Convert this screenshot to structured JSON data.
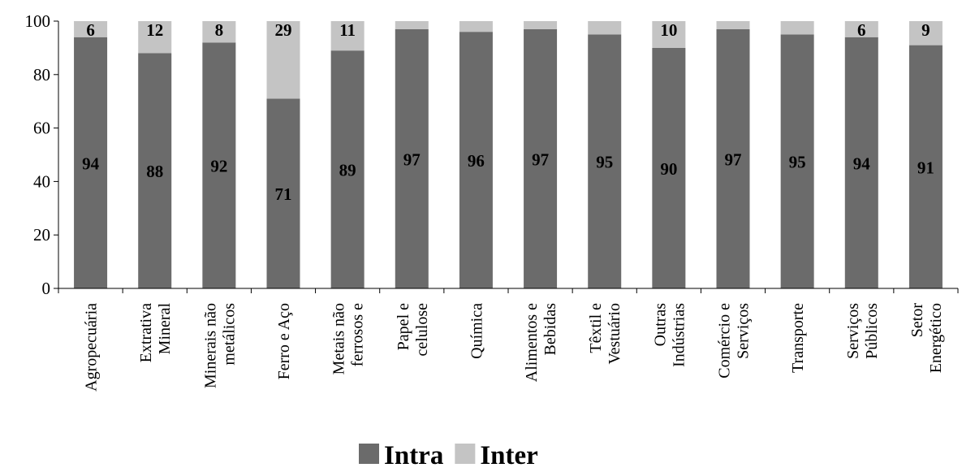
{
  "chart_data": {
    "type": "bar",
    "stacked": true,
    "categories": [
      [
        "Agropecuária"
      ],
      [
        "Extrativa",
        "Mineral"
      ],
      [
        "Minerais não",
        "metálicos"
      ],
      [
        "Ferro e Aço"
      ],
      [
        "Metais não",
        "ferrosos e"
      ],
      [
        "Papel e",
        "celulose"
      ],
      [
        "Química"
      ],
      [
        "Alimentos e",
        "Bebidas"
      ],
      [
        "Têxtil e",
        "Vestuário"
      ],
      [
        "Outras",
        "Indústrias"
      ],
      [
        "Comércio e",
        "Serviços"
      ],
      [
        "Transporte"
      ],
      [
        "Serviços",
        "Públicos"
      ],
      [
        "Setor",
        "Energético"
      ]
    ],
    "series": [
      {
        "name": "Intra",
        "color": "#6b6b6b",
        "values": [
          94,
          88,
          92,
          71,
          89,
          97,
          96,
          97,
          95,
          90,
          97,
          95,
          94,
          91
        ],
        "labels": [
          "94",
          "88",
          "92",
          "71",
          "89",
          "97",
          "96",
          "97",
          "95",
          "90",
          "97",
          "95",
          "94",
          "91"
        ]
      },
      {
        "name": "Inter",
        "color": "#c4c4c4",
        "values": [
          6,
          12,
          8,
          29,
          11,
          3,
          4,
          3,
          5,
          10,
          3,
          5,
          6,
          9
        ],
        "labels": [
          "6",
          "12",
          "8",
          "29",
          "11",
          "",
          "",
          "",
          "",
          "10",
          "",
          "",
          "6",
          "9"
        ]
      }
    ],
    "ylim": [
      0,
      100
    ],
    "yticks": [
      "0",
      "20",
      "40",
      "60",
      "80",
      "100"
    ],
    "xlabel": "",
    "ylabel": "",
    "title": "",
    "grid": false,
    "legend": "bottom-center"
  }
}
